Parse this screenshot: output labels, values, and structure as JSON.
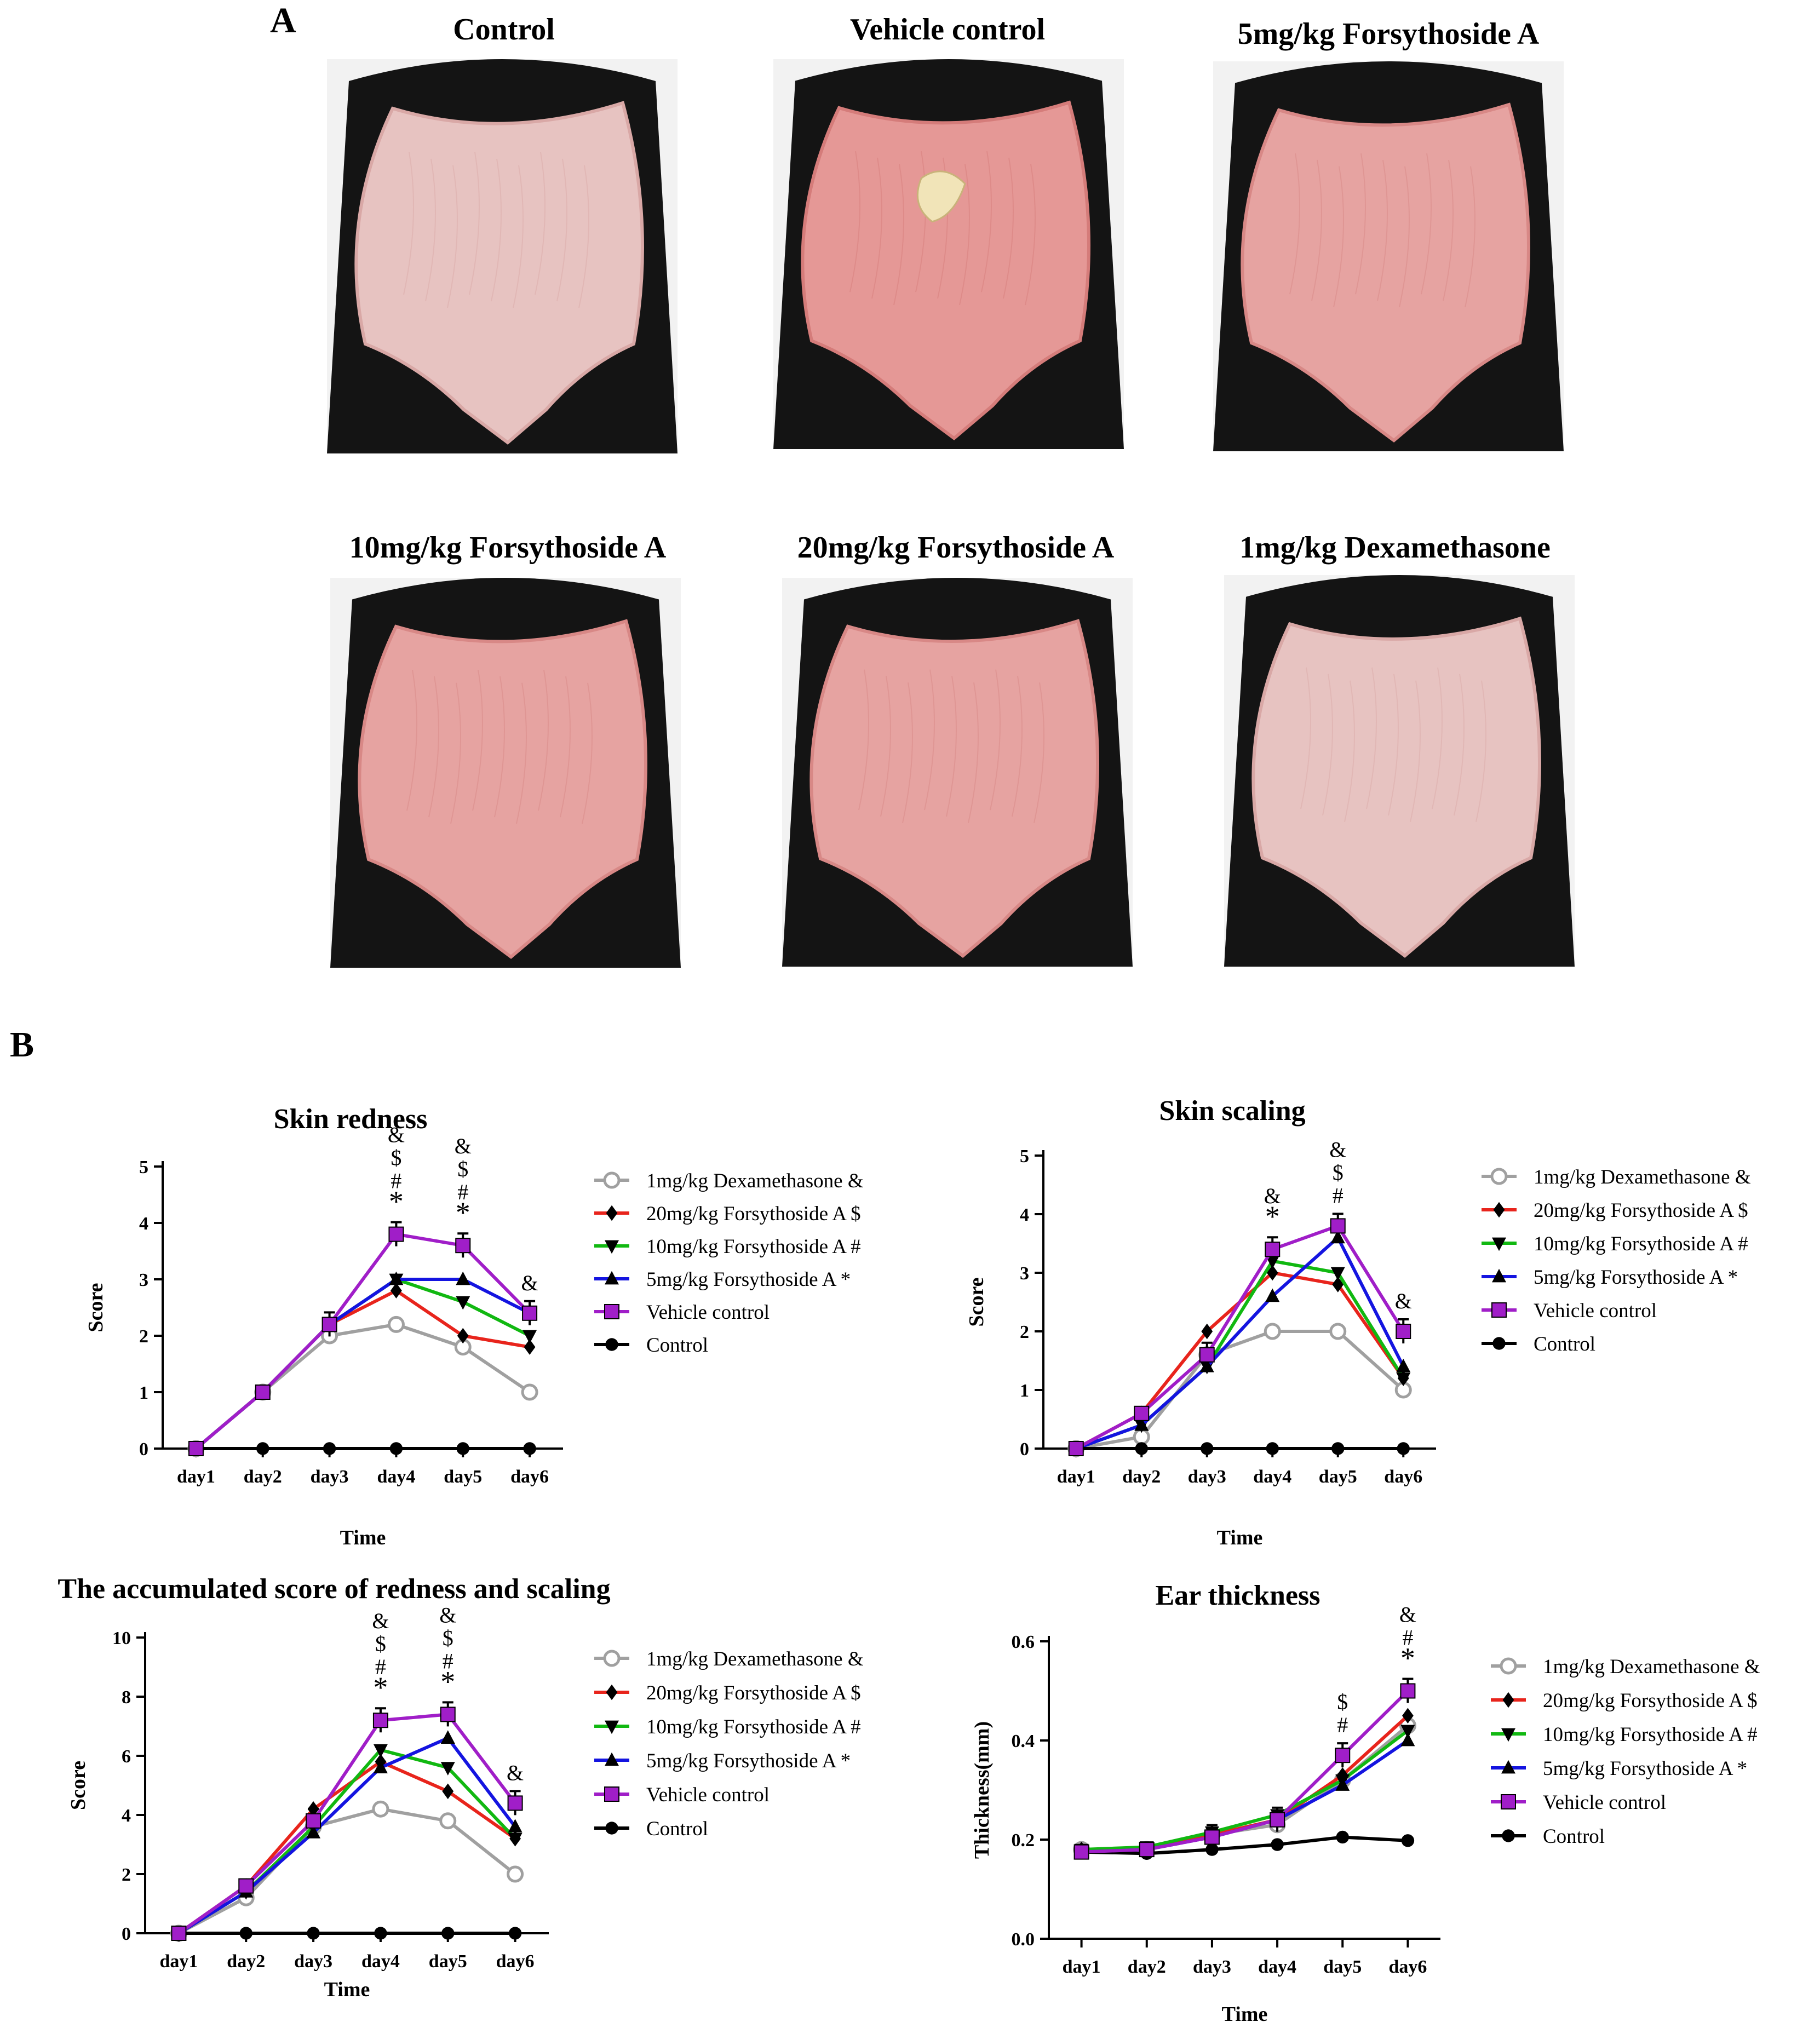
{
  "panels": {
    "a": "A",
    "b": "B"
  },
  "photos": [
    {
      "title": "Control",
      "condition": "mild"
    },
    {
      "title": "Vehicle control",
      "condition": "severe"
    },
    {
      "title": "5mg/kg Forsythoside A",
      "condition": "moderate"
    },
    {
      "title": "10mg/kg Forsythoside A",
      "condition": "moderate"
    },
    {
      "title": "20mg/kg Forsythoside A",
      "condition": "moderate"
    },
    {
      "title": "1mg/kg Dexamethasone",
      "condition": "mild"
    }
  ],
  "legend_marks": {
    "dex": "&",
    "fa20": "$",
    "fa10": "#",
    "fa5": "*"
  },
  "series_style": [
    {
      "key": "dex",
      "color": "#a0a0a0",
      "marker": "open-circle"
    },
    {
      "key": "fa20",
      "color": "#e8241c",
      "marker": "diamond"
    },
    {
      "key": "fa10",
      "color": "#11b811",
      "marker": "triangle-down"
    },
    {
      "key": "fa5",
      "color": "#1414e0",
      "marker": "triangle-up"
    },
    {
      "key": "veh",
      "color": "#a01ec8",
      "marker": "square"
    },
    {
      "key": "ctrl",
      "color": "#000000",
      "marker": "circle"
    }
  ],
  "chart_data": [
    {
      "type": "line",
      "title": "Skin redness",
      "xlabel": "Time",
      "ylabel": "Score",
      "categories": [
        "day1",
        "day2",
        "day3",
        "day4",
        "day5",
        "day6"
      ],
      "ylim": [
        0,
        5
      ],
      "yticks": [
        "0",
        "1",
        "2",
        "3",
        "4",
        "5"
      ],
      "series": [
        {
          "name": "1mg/kg Dexamethasone",
          "mark": "&",
          "values": [
            0,
            1.0,
            2.0,
            2.2,
            1.8,
            1.0
          ]
        },
        {
          "name": "20mg/kg Forsythoside A",
          "mark": "$",
          "values": [
            0,
            1.0,
            2.2,
            2.8,
            2.0,
            1.8
          ]
        },
        {
          "name": "10mg/kg Forsythoside A",
          "mark": "#",
          "values": [
            0,
            1.0,
            2.2,
            3.0,
            2.6,
            2.0
          ]
        },
        {
          "name": "5mg/kg Forsythoside A",
          "mark": "*",
          "values": [
            0,
            1.0,
            2.2,
            3.0,
            3.0,
            2.4
          ]
        },
        {
          "name": "Vehicle control",
          "mark": "",
          "values": [
            0,
            1.0,
            2.2,
            3.8,
            3.6,
            2.4
          ]
        },
        {
          "name": "Control",
          "mark": "",
          "values": [
            0,
            0,
            0,
            0,
            0,
            0
          ]
        }
      ],
      "annotations": [
        {
          "day": "day4",
          "marks": [
            "&",
            "$",
            "#",
            "*"
          ]
        },
        {
          "day": "day5",
          "marks": [
            "&",
            "$",
            "#",
            "*"
          ]
        },
        {
          "day": "day6",
          "marks": [
            "&"
          ]
        }
      ]
    },
    {
      "type": "line",
      "title": "Skin scaling",
      "xlabel": "Time",
      "ylabel": "Score",
      "categories": [
        "day1",
        "day2",
        "day3",
        "day4",
        "day5",
        "day6"
      ],
      "ylim": [
        0,
        5
      ],
      "yticks": [
        "0",
        "1",
        "2",
        "3",
        "4",
        "5"
      ],
      "series": [
        {
          "name": "1mg/kg Dexamethasone",
          "mark": "&",
          "values": [
            0,
            0.2,
            1.6,
            2.0,
            2.0,
            1.0
          ]
        },
        {
          "name": "20mg/kg Forsythoside A",
          "mark": "$",
          "values": [
            0,
            0.6,
            2.0,
            3.0,
            2.8,
            1.2
          ]
        },
        {
          "name": "10mg/kg Forsythoside A",
          "mark": "#",
          "values": [
            0,
            0.4,
            1.4,
            3.2,
            3.0,
            1.2
          ]
        },
        {
          "name": "5mg/kg Forsythoside A",
          "mark": "*",
          "values": [
            0,
            0.4,
            1.4,
            2.6,
            3.6,
            1.4
          ]
        },
        {
          "name": "Vehicle control",
          "mark": "",
          "values": [
            0,
            0.6,
            1.6,
            3.4,
            3.8,
            2.0
          ]
        },
        {
          "name": "Control",
          "mark": "",
          "values": [
            0,
            0,
            0,
            0,
            0,
            0
          ]
        }
      ],
      "annotations": [
        {
          "day": "day4",
          "marks": [
            "&",
            "*"
          ]
        },
        {
          "day": "day5",
          "marks": [
            "&",
            "$",
            "#"
          ]
        },
        {
          "day": "day6",
          "marks": [
            "&"
          ]
        }
      ]
    },
    {
      "type": "line",
      "title": "The accumulated score of redness and scaling",
      "xlabel": "Time",
      "ylabel": "Score",
      "categories": [
        "day1",
        "day2",
        "day3",
        "day4",
        "day5",
        "day6"
      ],
      "ylim": [
        0,
        10
      ],
      "yticks": [
        "0",
        "2",
        "4",
        "6",
        "8",
        "10"
      ],
      "series": [
        {
          "name": "1mg/kg Dexamethasone",
          "mark": "&",
          "values": [
            0,
            1.2,
            3.6,
            4.2,
            3.8,
            2.0
          ]
        },
        {
          "name": "20mg/kg Forsythoside A",
          "mark": "$",
          "values": [
            0,
            1.6,
            4.2,
            5.8,
            4.8,
            3.2
          ]
        },
        {
          "name": "10mg/kg Forsythoside A",
          "mark": "#",
          "values": [
            0,
            1.4,
            3.6,
            6.2,
            5.6,
            3.2
          ]
        },
        {
          "name": "5mg/kg Forsythoside A",
          "mark": "*",
          "values": [
            0,
            1.4,
            3.4,
            5.6,
            6.6,
            3.6
          ]
        },
        {
          "name": "Vehicle control",
          "mark": "",
          "values": [
            0,
            1.6,
            3.8,
            7.2,
            7.4,
            4.4
          ]
        },
        {
          "name": "Control",
          "mark": "",
          "values": [
            0,
            0,
            0,
            0,
            0,
            0
          ]
        }
      ],
      "annotations": [
        {
          "day": "day4",
          "marks": [
            "&",
            "$",
            "#",
            "*"
          ]
        },
        {
          "day": "day5",
          "marks": [
            "&",
            "$",
            "#",
            "*"
          ]
        },
        {
          "day": "day6",
          "marks": [
            "&"
          ]
        }
      ]
    },
    {
      "type": "line",
      "title": "Ear thickness",
      "xlabel": "Time",
      "ylabel": "Thickness(mm)",
      "categories": [
        "day1",
        "day2",
        "day3",
        "day4",
        "day5",
        "day6"
      ],
      "ylim": [
        0,
        0.6
      ],
      "yticks": [
        "0.0",
        "0.2",
        "0.4",
        "0.6"
      ],
      "series": [
        {
          "name": "1mg/kg Dexamethasone",
          "mark": "&",
          "values": [
            0.18,
            0.18,
            0.21,
            0.23,
            0.32,
            0.43
          ]
        },
        {
          "name": "20mg/kg Forsythoside A",
          "mark": "$",
          "values": [
            0.18,
            0.18,
            0.21,
            0.24,
            0.33,
            0.45
          ]
        },
        {
          "name": "10mg/kg Forsythoside A",
          "mark": "#",
          "values": [
            0.18,
            0.185,
            0.215,
            0.25,
            0.32,
            0.42
          ]
        },
        {
          "name": "5mg/kg Forsythoside A",
          "mark": "*",
          "values": [
            0.175,
            0.18,
            0.205,
            0.24,
            0.31,
            0.4
          ]
        },
        {
          "name": "Vehicle control",
          "mark": "",
          "values": [
            0.175,
            0.18,
            0.205,
            0.24,
            0.37,
            0.5
          ]
        },
        {
          "name": "Control",
          "mark": "",
          "values": [
            0.175,
            0.172,
            0.18,
            0.19,
            0.205,
            0.198
          ]
        }
      ],
      "annotations": [
        {
          "day": "day5",
          "marks": [
            "$",
            "#"
          ]
        },
        {
          "day": "day6",
          "marks": [
            "&",
            "#",
            "*"
          ]
        }
      ]
    }
  ]
}
